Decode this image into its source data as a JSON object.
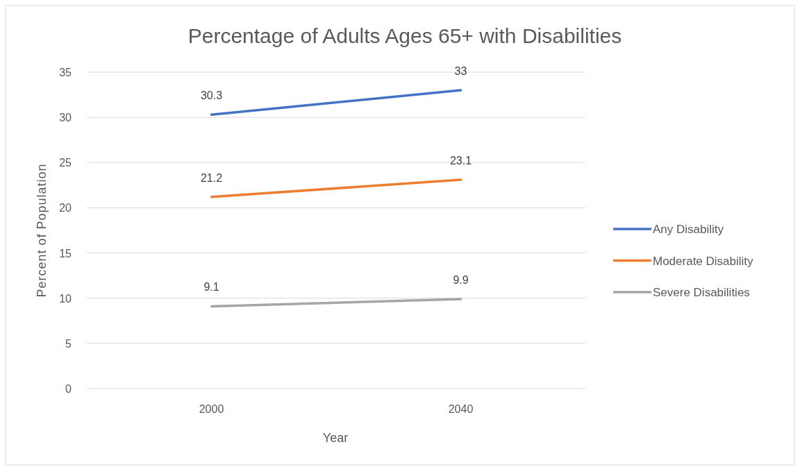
{
  "chart_data": {
    "type": "line",
    "title": "Percentage of Adults Ages 65+ with Disabilities",
    "xlabel": "Year",
    "ylabel": "Percent of Population",
    "categories": [
      "2000",
      "2040"
    ],
    "series": [
      {
        "name": "Any Disability",
        "color": "#4472c4",
        "values": [
          30.3,
          33
        ]
      },
      {
        "name": "Moderate Disability",
        "color": "#ed7d31",
        "values": [
          21.2,
          23.1
        ]
      },
      {
        "name": "Severe Disabilities",
        "color": "#a5a5a5",
        "values": [
          9.1,
          9.9
        ]
      }
    ],
    "ylim": [
      0,
      35
    ],
    "yticks": [
      0,
      5,
      10,
      15,
      20,
      25,
      30,
      35
    ],
    "grid": "y",
    "legend": "right",
    "data_labels": true,
    "marker": "none",
    "line_style": "solid"
  }
}
